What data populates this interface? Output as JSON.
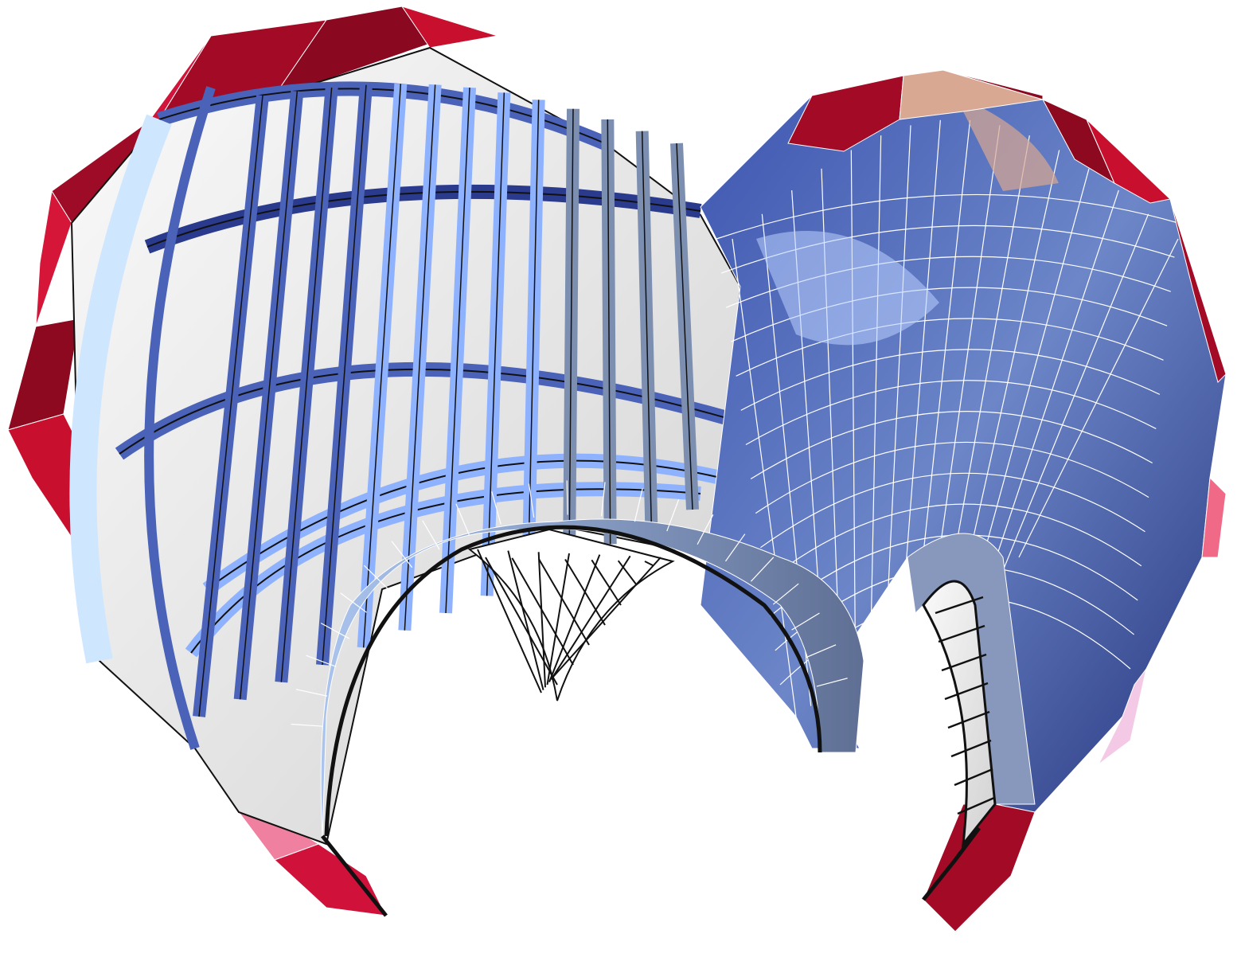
{
  "figure": {
    "subject": "shell-vault-structure-render",
    "colors": {
      "background": "#ffffff",
      "edge_red": "#c8102e",
      "edge_red_dark": "#8e0a22",
      "edge_pink": "#f06a88",
      "blue_deep": "#2a3a8c",
      "blue_mid": "#4a62b8",
      "blue_light": "#8fb2ff",
      "blue_pale": "#cfe6ff",
      "steel": "#7d8fb0",
      "panel_white": "#eeeeee",
      "panel_shade": "#d6d6d6",
      "peach": "#d9a892",
      "outline": "#111111"
    }
  }
}
